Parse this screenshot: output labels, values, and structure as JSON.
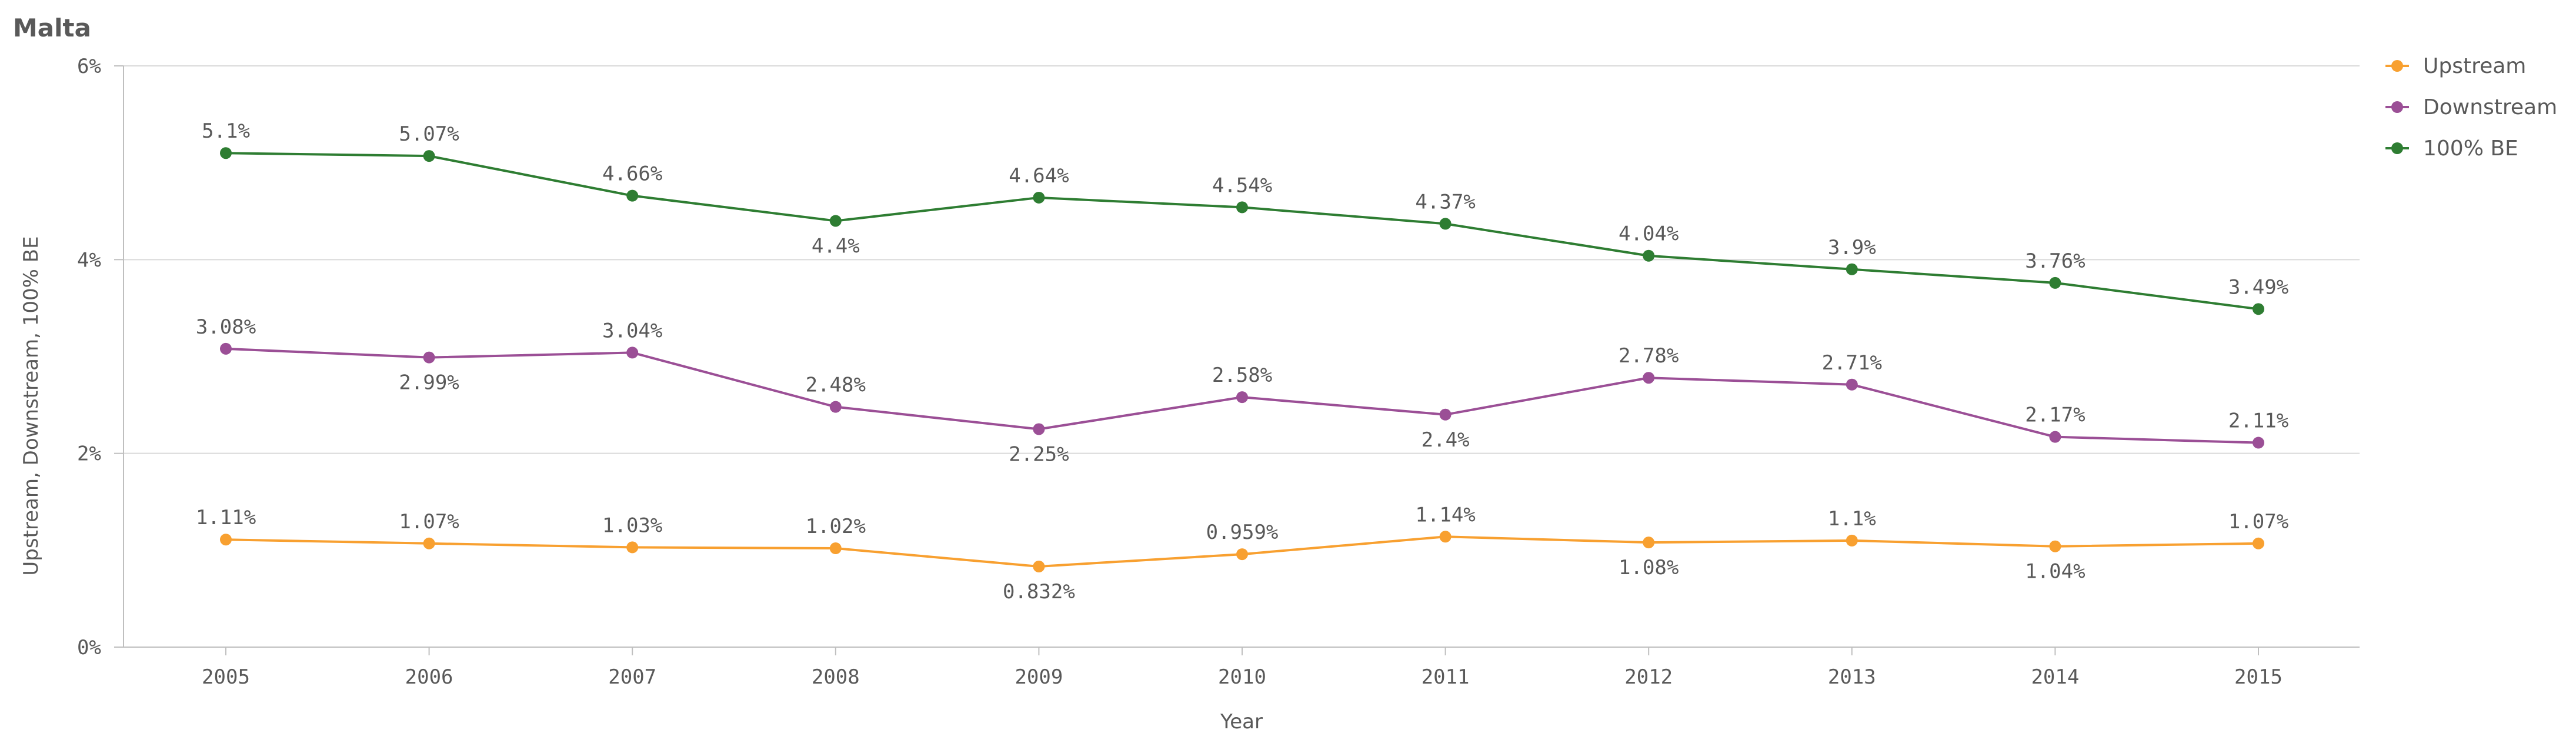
{
  "chart_data": {
    "type": "line",
    "title": "Malta",
    "xlabel": "Year",
    "ylabel": "Upstream, Downstream, 100% BE",
    "categories": [
      "2005",
      "2006",
      "2007",
      "2008",
      "2009",
      "2010",
      "2011",
      "2012",
      "2013",
      "2014",
      "2015"
    ],
    "ylim": [
      0,
      6
    ],
    "yticks": [
      {
        "value": 0,
        "label": "0%"
      },
      {
        "value": 2,
        "label": "2%"
      },
      {
        "value": 4,
        "label": "4%"
      },
      {
        "value": 6,
        "label": "6%"
      }
    ],
    "grid": true,
    "legend_position": "top-right",
    "series": [
      {
        "name": "Upstream",
        "color": "#f8a030",
        "values": [
          1.11,
          1.07,
          1.03,
          1.02,
          0.832,
          0.959,
          1.14,
          1.08,
          1.1,
          1.04,
          1.07
        ],
        "labels": [
          "1.11%",
          "1.07%",
          "1.03%",
          "1.02%",
          "0.832%",
          "0.959%",
          "1.14%",
          "1.08%",
          "1.1%",
          "1.04%",
          "1.07%"
        ],
        "label_positions": [
          "above",
          "above",
          "above",
          "above",
          "below",
          "above",
          "above",
          "below",
          "above",
          "below",
          "above"
        ]
      },
      {
        "name": "Downstream",
        "color": "#9b4f96",
        "values": [
          3.08,
          2.99,
          3.04,
          2.48,
          2.25,
          2.58,
          2.4,
          2.78,
          2.71,
          2.17,
          2.11
        ],
        "labels": [
          "3.08%",
          "2.99%",
          "3.04%",
          "2.48%",
          "2.25%",
          "2.58%",
          "2.4%",
          "2.78%",
          "2.71%",
          "2.17%",
          "2.11%"
        ],
        "label_positions": [
          "above",
          "below",
          "above",
          "above",
          "below",
          "above",
          "below",
          "above",
          "above",
          "above",
          "above"
        ]
      },
      {
        "name": "100% BE",
        "color": "#2e7d32",
        "values": [
          5.1,
          5.07,
          4.66,
          4.4,
          4.64,
          4.54,
          4.37,
          4.04,
          3.9,
          3.76,
          3.49
        ],
        "labels": [
          "5.1%",
          "5.07%",
          "4.66%",
          "4.4%",
          "4.64%",
          "4.54%",
          "4.37%",
          "4.04%",
          "3.9%",
          "3.76%",
          "3.49%"
        ],
        "label_positions": [
          "above",
          "above",
          "above",
          "below",
          "above",
          "above",
          "above",
          "above",
          "above",
          "above",
          "above"
        ]
      }
    ]
  }
}
